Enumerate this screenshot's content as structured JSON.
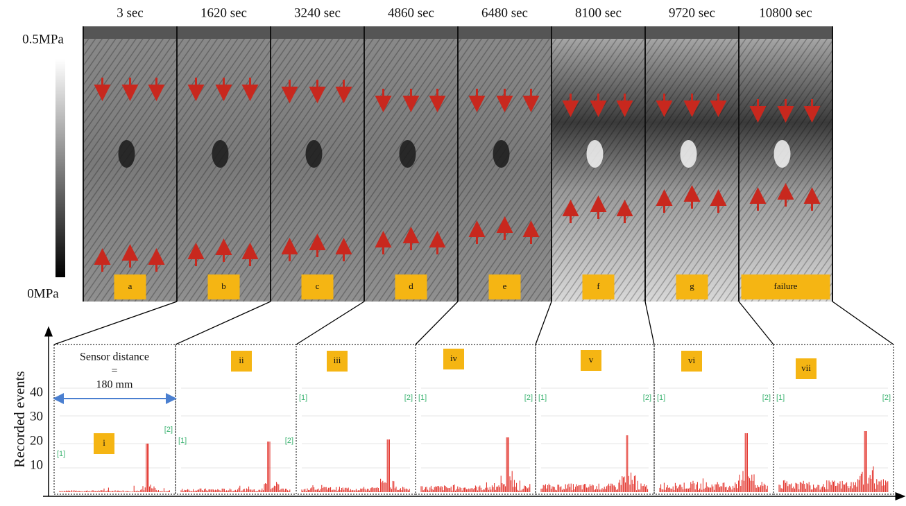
{
  "top": {
    "scale_max": "0.5MPa",
    "scale_min": "0MPa",
    "panels": [
      {
        "time": "3 sec",
        "label": "a"
      },
      {
        "time": "1620 sec",
        "label": "b"
      },
      {
        "time": "3240 sec",
        "label": "c"
      },
      {
        "time": "4860 sec",
        "label": "d"
      },
      {
        "time": "6480 sec",
        "label": "e"
      },
      {
        "time": "8100 sec",
        "label": "f"
      },
      {
        "time": "9720 sec",
        "label": "g"
      },
      {
        "time": "10800 sec",
        "label": "failure"
      }
    ]
  },
  "bottom": {
    "y_axis_label": "Recorded events",
    "yticks": [
      10,
      20,
      30,
      40
    ],
    "sensor_distance": {
      "line1": "Sensor distance",
      "line2": "=",
      "line3": "180 mm"
    },
    "panels": [
      {
        "label": "i",
        "sensor1": "[1]",
        "sensor2": "[2]"
      },
      {
        "label": "ii",
        "sensor1": "[1]",
        "sensor2": "[2]"
      },
      {
        "label": "iii",
        "sensor1": "[1]",
        "sensor2": "[2]"
      },
      {
        "label": "iv",
        "sensor1": "[1]",
        "sensor2": "[2]"
      },
      {
        "label": "v",
        "sensor1": "[1]",
        "sensor2": "[2]"
      },
      {
        "label": "vi",
        "sensor1": "[1]",
        "sensor2": "[2]"
      },
      {
        "label": "vii",
        "sensor1": "[1]",
        "sensor2": "[2]"
      }
    ]
  }
}
